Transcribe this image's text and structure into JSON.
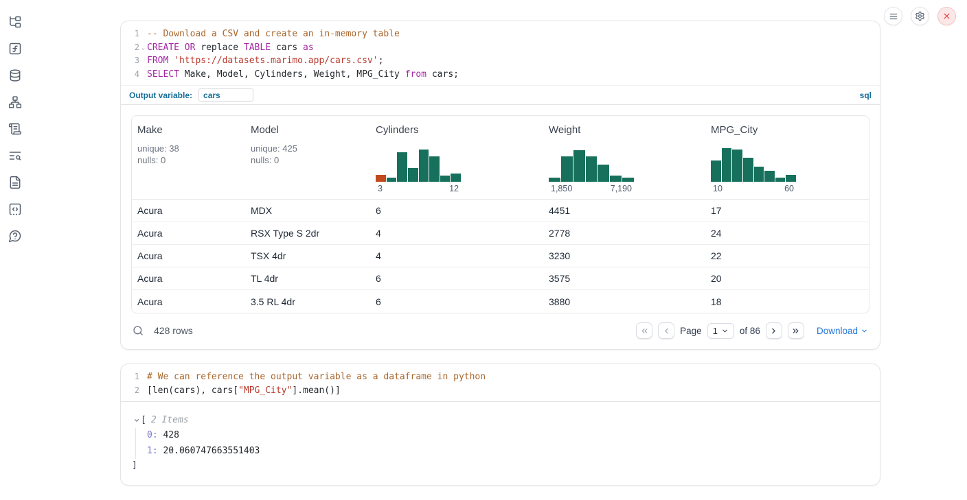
{
  "sidebar": {
    "items": [
      {
        "icon": "file-tree-icon",
        "name": "explorer"
      },
      {
        "icon": "function-square-icon",
        "name": "variables"
      },
      {
        "icon": "database-icon",
        "name": "datasources"
      },
      {
        "icon": "network-icon",
        "name": "dependency-graph"
      },
      {
        "icon": "scroll-text-icon",
        "name": "scratchpad"
      },
      {
        "icon": "text-search-icon",
        "name": "logs"
      },
      {
        "icon": "file-text-icon",
        "name": "documentation"
      },
      {
        "icon": "square-code-icon",
        "name": "snippets"
      },
      {
        "icon": "help-bubble-icon",
        "name": "help"
      }
    ]
  },
  "window_controls": {
    "icons": [
      "menu-icon",
      "gear-icon",
      "close-icon"
    ]
  },
  "cells": [
    {
      "language_label": "sql",
      "output_variable_label": "Output variable:",
      "output_variable_value": "cars",
      "fold_markers": [
        2
      ],
      "code": [
        [
          {
            "c": "com",
            "t": "-- Download a CSV and create an in-memory table"
          }
        ],
        [
          {
            "c": "kw",
            "t": "CREATE"
          },
          {
            "c": "pl",
            "t": " "
          },
          {
            "c": "kw",
            "t": "OR"
          },
          {
            "c": "pl",
            "t": " replace "
          },
          {
            "c": "kw",
            "t": "TABLE"
          },
          {
            "c": "pl",
            "t": " cars "
          },
          {
            "c": "kw",
            "t": "as"
          }
        ],
        [
          {
            "c": "kw",
            "t": "FROM"
          },
          {
            "c": "pl",
            "t": " "
          },
          {
            "c": "str",
            "t": "'https://datasets.marimo.app/cars.csv'"
          },
          {
            "c": "pl",
            "t": ";"
          }
        ],
        [
          {
            "c": "kw",
            "t": "SELECT"
          },
          {
            "c": "pl",
            "t": " Make, Model, Cylinders, Weight, MPG_City "
          },
          {
            "c": "kw",
            "t": "from"
          },
          {
            "c": "pl",
            "t": " cars;"
          }
        ]
      ]
    },
    {
      "fold_markers": [],
      "code": [
        [
          {
            "c": "com",
            "t": "# We can reference the output variable as a dataframe in python"
          }
        ],
        [
          {
            "c": "pl",
            "t": "[len(cars), cars["
          },
          {
            "c": "str",
            "t": "\"MPG_City\""
          },
          {
            "c": "pl",
            "t": "].mean()]"
          }
        ]
      ]
    }
  ],
  "table": {
    "columns": [
      {
        "name": "Make",
        "stats": [
          "unique: 38",
          "nulls: 0"
        ]
      },
      {
        "name": "Model",
        "stats": [
          "unique: 425",
          "nulls: 0"
        ]
      },
      {
        "name": "Cylinders",
        "histogram": "Cylinders"
      },
      {
        "name": "Weight",
        "histogram": "Weight"
      },
      {
        "name": "MPG_City",
        "histogram": "MPG_City"
      }
    ],
    "rows": [
      [
        "Acura",
        "MDX",
        "6",
        "4451",
        "17"
      ],
      [
        "Acura",
        "RSX Type S 2dr",
        "4",
        "2778",
        "24"
      ],
      [
        "Acura",
        "TSX 4dr",
        "4",
        "3230",
        "22"
      ],
      [
        "Acura",
        "TL 4dr",
        "6",
        "3575",
        "20"
      ],
      [
        "Acura",
        "3.5 RL 4dr",
        "6",
        "3880",
        "18"
      ]
    ],
    "footer": {
      "row_count": "428 rows",
      "page_label": "Page",
      "page_value": "1",
      "of_label": "of 86",
      "download_label": "Download"
    }
  },
  "chart_data": [
    {
      "type": "histogram",
      "column": "Cylinders",
      "x_min_label": "3",
      "x_max_label": "12",
      "relative_heights": [
        20,
        12,
        82,
        38,
        90,
        72,
        18,
        24
      ],
      "bar_color": "#16705c",
      "first_bar_color": "#c04a1e"
    },
    {
      "type": "histogram",
      "column": "Weight",
      "x_min_label": "1,850",
      "x_max_label": "7,190",
      "relative_heights": [
        12,
        72,
        88,
        72,
        48,
        18,
        12
      ],
      "bar_color": "#16705c"
    },
    {
      "type": "histogram",
      "column": "MPG_City",
      "x_min_label": "10",
      "x_max_label": "60",
      "relative_heights": [
        60,
        95,
        90,
        68,
        42,
        30,
        12,
        20
      ],
      "bar_color": "#16705c"
    }
  ],
  "python_output": {
    "open_bracket": "[",
    "items_label": "2 Items",
    "entries": [
      {
        "key": "0:",
        "value": "428"
      },
      {
        "key": "1:",
        "value": "20.060747663551403"
      }
    ],
    "close_bracket": "]"
  },
  "colors": {
    "accent_blue": "#176e99",
    "link_blue": "#2777d8",
    "keyword_purple": "#a626a4",
    "string_red": "#b83a2e",
    "comment_brown": "#a9662c",
    "hist_teal": "#16705c",
    "hist_orange": "#c04a1e",
    "danger_red": "#e25555"
  }
}
